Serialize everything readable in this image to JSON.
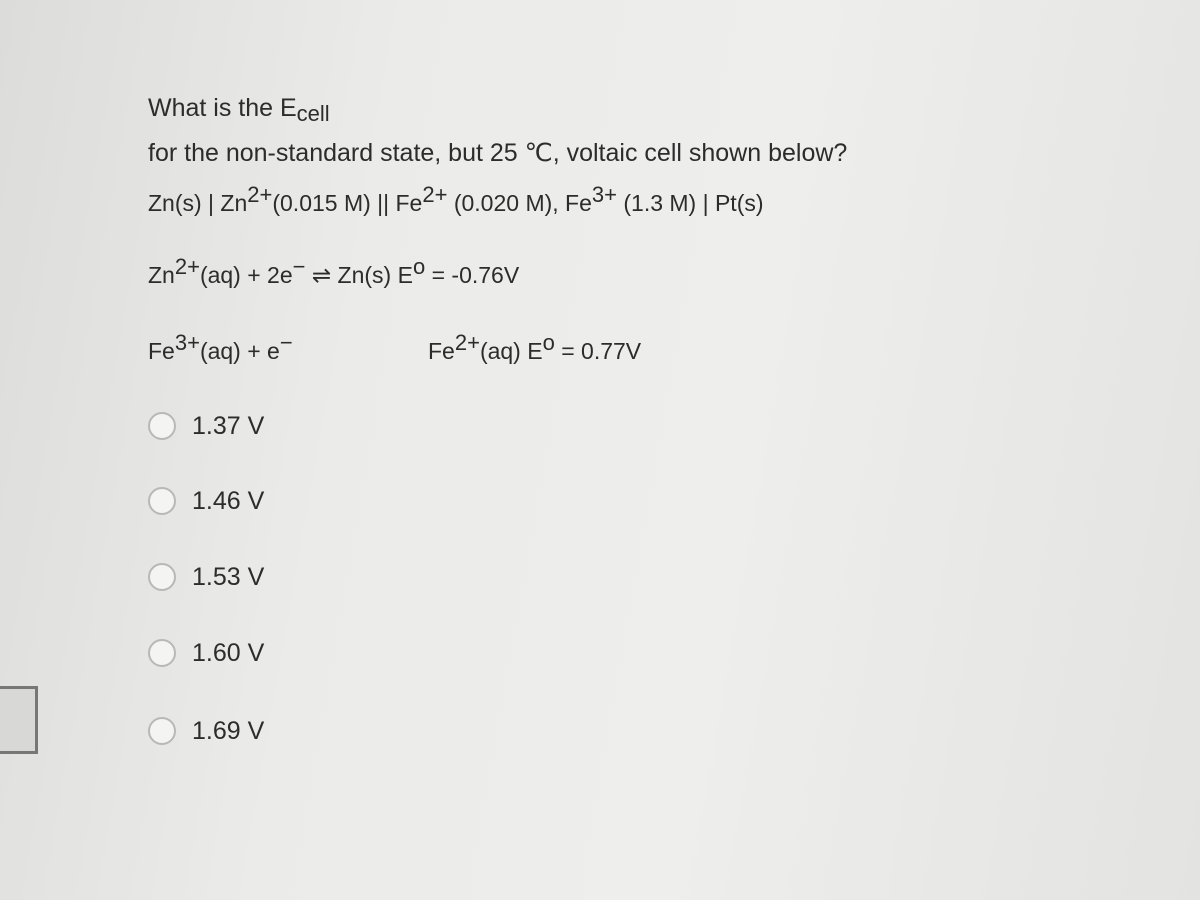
{
  "question": {
    "prompt_main": "What is the E",
    "prompt_sub": "cell",
    "line2": "for the non-standard state, but 25 ℃, voltaic cell shown below?",
    "cell_notation": [
      "Zn(s) | Zn",
      "2+",
      "(0.015 M) || Fe",
      "2+",
      " (0.020 M), Fe",
      "3+",
      " (1.3 M) | Pt(s)"
    ],
    "half_reaction_1": [
      "Zn",
      "2+",
      "(aq) + 2e",
      "−",
      " ⇌ Zn(s) E",
      "o",
      " = -0.76V"
    ],
    "half_reaction_2_left": [
      "Fe",
      "3+",
      "(aq) + e",
      "−"
    ],
    "half_reaction_2_right": [
      "Fe",
      "2+",
      "(aq) E",
      "o",
      " = 0.77V"
    ]
  },
  "options": [
    "1.37 V",
    "1.46 V",
    "1.53 V",
    "1.60 V",
    "1.69 V"
  ]
}
